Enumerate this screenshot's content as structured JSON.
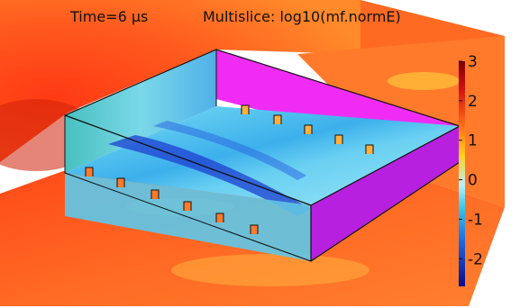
{
  "plot": {
    "title_time": "Time=6 µs",
    "title_expr": "Multislice: log10(mf.normE)"
  },
  "colorbar": {
    "ticks": [
      "3",
      "2",
      "1",
      "0",
      "-1",
      "-2"
    ],
    "range": [
      -2.7,
      3.0
    ]
  },
  "colors": {
    "background_field": "#ff5a1e",
    "box_top_surface": "#5fd8f0",
    "box_side_wall": "#ff2cff",
    "box_front_wall": "#b820e0",
    "dark_band": "#1e3fd0"
  }
}
